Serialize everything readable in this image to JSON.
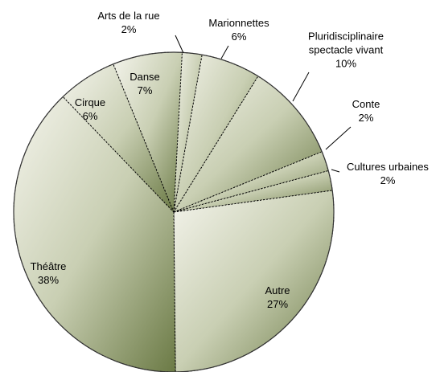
{
  "chart_data": {
    "type": "pie",
    "categories": [
      "Arts de la rue",
      "Marionnettes",
      "Pluridisciplinaire spectacle vivant",
      "Conte",
      "Cultures urbaines",
      "Autre",
      "Théâtre",
      "Cirque",
      "Danse"
    ],
    "values": [
      2,
      6,
      10,
      2,
      2,
      27,
      38,
      6,
      7
    ],
    "value_labels": [
      "2%",
      "6%",
      "10%",
      "2%",
      "2%",
      "27%",
      "38%",
      "6%",
      "7%"
    ],
    "color": "#6b7a45"
  }
}
